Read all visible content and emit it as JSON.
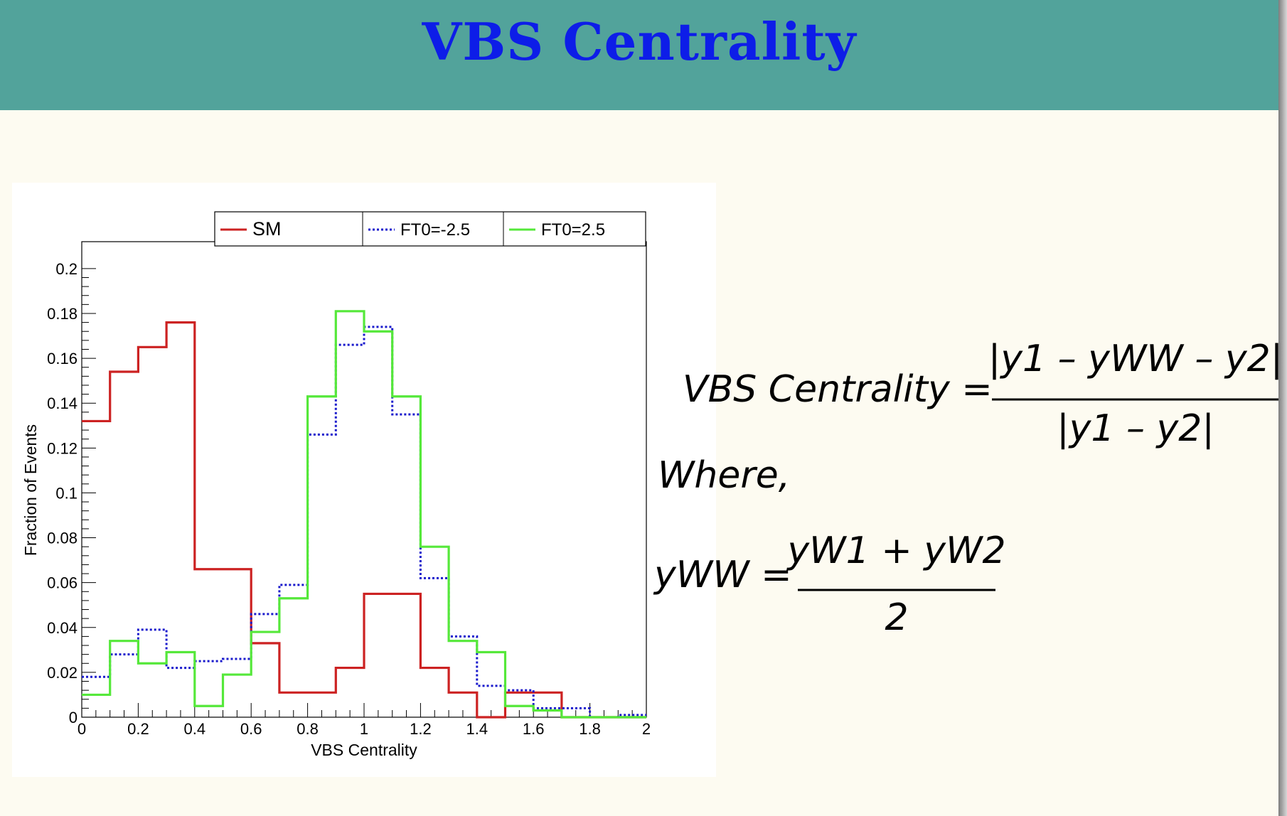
{
  "header": {
    "title": "VBS Centrality",
    "background": "#52a39b",
    "title_color": "#0d1de8"
  },
  "chart_data": {
    "type": "line",
    "step": true,
    "xlabel": "VBS Centrality",
    "ylabel": "Fraction of Events",
    "xlim": [
      0,
      2
    ],
    "ylim": [
      0,
      0.212
    ],
    "xticks": [
      0,
      0.2,
      0.4,
      0.6,
      0.8,
      1,
      1.2,
      1.4,
      1.6,
      1.8,
      2
    ],
    "xtick_labels": [
      "0",
      "0.2",
      "0.4",
      "0.6",
      "0.8",
      "1",
      "1.2",
      "1.4",
      "1.6",
      "1.8",
      "2"
    ],
    "yticks": [
      0,
      0.02,
      0.04,
      0.06,
      0.08,
      0.1,
      0.12,
      0.14,
      0.16,
      0.18,
      0.2
    ],
    "ytick_labels": [
      "0",
      "0.02",
      "0.04",
      "0.06",
      "0.08",
      "0.1",
      "0.12",
      "0.14",
      "0.16",
      "0.18",
      "0.2"
    ],
    "bin_edges": [
      0,
      0.1,
      0.2,
      0.3,
      0.4,
      0.5,
      0.6,
      0.7,
      0.8,
      0.9,
      1.0,
      1.1,
      1.2,
      1.3,
      1.4,
      1.5,
      1.6,
      1.7,
      1.8,
      1.9,
      2.0
    ],
    "legend_placement": "top",
    "grid": false,
    "series": [
      {
        "name": "SM",
        "color": "#cc2222",
        "dash": "solid",
        "values": [
          0.132,
          0.154,
          0.165,
          0.176,
          0.066,
          0.066,
          0.033,
          0.011,
          0.011,
          0.022,
          0.055,
          0.055,
          0.022,
          0.011,
          0.0,
          0.011,
          0.011,
          0.0,
          0.0,
          0.0
        ]
      },
      {
        "name": "FT0=-2.5",
        "color": "#1a1acc",
        "dash": "dotted",
        "values": [
          0.018,
          0.028,
          0.039,
          0.022,
          0.025,
          0.026,
          0.046,
          0.059,
          0.126,
          0.166,
          0.174,
          0.135,
          0.062,
          0.036,
          0.014,
          0.012,
          0.004,
          0.004,
          0.0,
          0.001
        ]
      },
      {
        "name": "FT0=2.5",
        "color": "#55e83a",
        "dash": "solid",
        "values": [
          0.01,
          0.034,
          0.024,
          0.029,
          0.005,
          0.019,
          0.038,
          0.053,
          0.143,
          0.181,
          0.172,
          0.143,
          0.076,
          0.034,
          0.029,
          0.005,
          0.003,
          0.0,
          0.0,
          0.0
        ]
      }
    ]
  },
  "formula": {
    "line1_lhs": "VBS  Centrality =",
    "line1_num": "|y1 – yWW – y2|",
    "line1_den": "|y1 – y2|",
    "where": "Where,",
    "line2_lhs": "yWW =",
    "line2_num": "yW1 + yW2",
    "line2_den": "2"
  }
}
